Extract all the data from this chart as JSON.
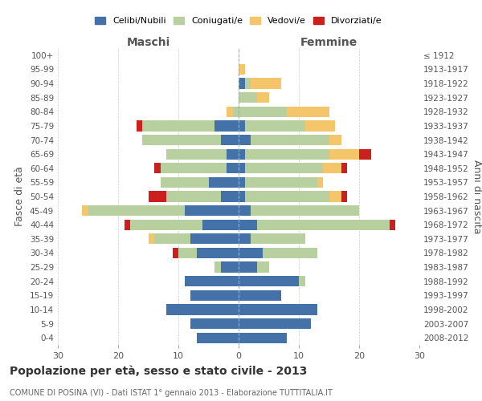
{
  "age_groups": [
    "100+",
    "95-99",
    "90-94",
    "85-89",
    "80-84",
    "75-79",
    "70-74",
    "65-69",
    "60-64",
    "55-59",
    "50-54",
    "45-49",
    "40-44",
    "35-39",
    "30-34",
    "25-29",
    "20-24",
    "15-19",
    "10-14",
    "5-9",
    "0-4"
  ],
  "birth_years": [
    "≤ 1912",
    "1913-1917",
    "1918-1922",
    "1923-1927",
    "1928-1932",
    "1933-1937",
    "1938-1942",
    "1943-1947",
    "1948-1952",
    "1953-1957",
    "1958-1962",
    "1963-1967",
    "1968-1972",
    "1973-1977",
    "1978-1982",
    "1983-1987",
    "1988-1992",
    "1993-1997",
    "1998-2002",
    "2003-2007",
    "2008-2012"
  ],
  "male": {
    "celibi": [
      0,
      0,
      0,
      0,
      0,
      4,
      3,
      2,
      2,
      5,
      3,
      9,
      6,
      8,
      7,
      3,
      9,
      8,
      12,
      8,
      7
    ],
    "coniugati": [
      0,
      0,
      0,
      0,
      1,
      12,
      13,
      10,
      11,
      8,
      9,
      16,
      12,
      6,
      3,
      1,
      0,
      0,
      0,
      0,
      0
    ],
    "vedovi": [
      0,
      0,
      0,
      0,
      1,
      0,
      0,
      0,
      0,
      0,
      0,
      1,
      0,
      1,
      0,
      0,
      0,
      0,
      0,
      0,
      0
    ],
    "divorziati": [
      0,
      0,
      0,
      0,
      0,
      1,
      0,
      0,
      1,
      0,
      3,
      0,
      1,
      0,
      1,
      0,
      0,
      0,
      0,
      0,
      0
    ]
  },
  "female": {
    "nubili": [
      0,
      0,
      1,
      0,
      0,
      1,
      2,
      1,
      1,
      1,
      1,
      2,
      3,
      2,
      4,
      3,
      10,
      7,
      13,
      12,
      8
    ],
    "coniugate": [
      0,
      0,
      1,
      3,
      8,
      10,
      13,
      14,
      13,
      12,
      14,
      18,
      22,
      9,
      9,
      2,
      1,
      0,
      0,
      0,
      0
    ],
    "vedove": [
      0,
      1,
      5,
      2,
      7,
      5,
      2,
      5,
      3,
      1,
      2,
      0,
      0,
      0,
      0,
      0,
      0,
      0,
      0,
      0,
      0
    ],
    "divorziate": [
      0,
      0,
      0,
      0,
      0,
      0,
      0,
      2,
      1,
      0,
      1,
      0,
      1,
      0,
      0,
      0,
      0,
      0,
      0,
      0,
      0
    ]
  },
  "colors": {
    "celibi": "#4472a8",
    "coniugati": "#b8cfa0",
    "vedovi": "#f5c56a",
    "divorziati": "#cc2020"
  },
  "xlim": 30,
  "title": "Popolazione per età, sesso e stato civile - 2013",
  "subtitle": "COMUNE DI POSINA (VI) - Dati ISTAT 1° gennaio 2013 - Elaborazione TUTTITALIA.IT",
  "ylabel_left": "Fasce di età",
  "ylabel_right": "Anni di nascita",
  "xlabel_left": "Maschi",
  "xlabel_right": "Femmine",
  "legend_labels": [
    "Celibi/Nubili",
    "Coniugati/e",
    "Vedovi/e",
    "Divorziati/e"
  ],
  "bg_color": "#ffffff",
  "grid_color": "#cccccc"
}
